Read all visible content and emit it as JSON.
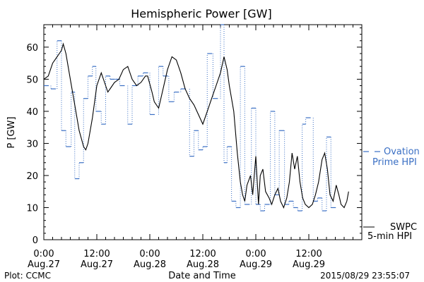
{
  "chart_data": {
    "type": "line",
    "title": "Hemispheric Power [GW]",
    "xlabel": "Date and Time",
    "ylabel": "P [GW]",
    "xlim_hours": [
      0,
      72
    ],
    "ylim": [
      0,
      67
    ],
    "y_ticks": [
      0,
      10,
      20,
      30,
      40,
      50,
      60
    ],
    "x_ticks": [
      {
        "hour": 0,
        "time": "0:00",
        "day": "Aug.27"
      },
      {
        "hour": 12,
        "time": "12:00",
        "day": "Aug.27"
      },
      {
        "hour": 24,
        "time": "0:00",
        "day": "Aug.28"
      },
      {
        "hour": 36,
        "time": "12:00",
        "day": "Aug.28"
      },
      {
        "hour": 48,
        "time": "0:00",
        "day": "Aug.29"
      },
      {
        "hour": 60,
        "time": "12:00",
        "day": "Aug.29"
      }
    ],
    "series": [
      {
        "name": "Ovation Prime HPI",
        "legend_lines": [
          "Ovation",
          "Prime HPI"
        ],
        "color": "#3a6fc4",
        "style": "dotted-step",
        "points": [
          [
            0,
            48
          ],
          [
            1.6,
            47
          ],
          [
            3,
            62
          ],
          [
            4,
            34
          ],
          [
            5,
            29
          ],
          [
            6.2,
            46
          ],
          [
            7,
            19
          ],
          [
            8,
            24
          ],
          [
            9,
            44
          ],
          [
            10,
            51
          ],
          [
            11,
            54
          ],
          [
            11.8,
            40
          ],
          [
            13,
            36
          ],
          [
            14,
            51
          ],
          [
            15,
            50
          ],
          [
            16.2,
            50
          ],
          [
            17.2,
            48
          ],
          [
            19,
            36
          ],
          [
            20,
            48
          ],
          [
            21.3,
            51
          ],
          [
            22.5,
            52
          ],
          [
            24,
            39
          ],
          [
            26,
            54
          ],
          [
            27,
            51
          ],
          [
            28.3,
            43
          ],
          [
            29.5,
            46
          ],
          [
            31,
            47
          ],
          [
            33,
            26
          ],
          [
            34,
            34
          ],
          [
            35,
            28
          ],
          [
            36,
            29
          ],
          [
            37,
            58
          ],
          [
            38.3,
            44
          ],
          [
            40,
            67
          ],
          [
            40.8,
            24
          ],
          [
            41.5,
            29
          ],
          [
            42.5,
            12
          ],
          [
            43.5,
            10
          ],
          [
            44.5,
            54
          ],
          [
            45.5,
            11
          ],
          [
            47,
            41
          ],
          [
            48,
            11
          ],
          [
            49,
            9
          ],
          [
            50,
            11
          ],
          [
            51.3,
            40
          ],
          [
            52.3,
            14
          ],
          [
            53.3,
            34
          ],
          [
            54.5,
            11
          ],
          [
            55.5,
            12
          ],
          [
            56.5,
            10
          ],
          [
            57.5,
            9
          ],
          [
            58.5,
            36
          ],
          [
            59.3,
            38
          ],
          [
            61,
            12
          ],
          [
            62,
            13
          ],
          [
            63,
            9
          ],
          [
            64,
            32
          ],
          [
            65,
            10
          ]
        ]
      },
      {
        "name": "SWPC 5-min HPI",
        "legend_lines": [
          "SWPC",
          "5-min HPI"
        ],
        "color": "#000000",
        "style": "solid",
        "points": [
          [
            0,
            50
          ],
          [
            1,
            51
          ],
          [
            2,
            55
          ],
          [
            3,
            57
          ],
          [
            3.5,
            58
          ],
          [
            4,
            59
          ],
          [
            4.4,
            61
          ],
          [
            5,
            58
          ],
          [
            6,
            50
          ],
          [
            7,
            42
          ],
          [
            8,
            34
          ],
          [
            9,
            29
          ],
          [
            9.5,
            28
          ],
          [
            10,
            30
          ],
          [
            11,
            38
          ],
          [
            12,
            48
          ],
          [
            13,
            52
          ],
          [
            14,
            48
          ],
          [
            14.5,
            46
          ],
          [
            15,
            47
          ],
          [
            16,
            49
          ],
          [
            17,
            50
          ],
          [
            18,
            53
          ],
          [
            19,
            54
          ],
          [
            20,
            50
          ],
          [
            21,
            48
          ],
          [
            22,
            49
          ],
          [
            23,
            51
          ],
          [
            23.5,
            51
          ],
          [
            24.5,
            46
          ],
          [
            25,
            43
          ],
          [
            26,
            41
          ],
          [
            27,
            47
          ],
          [
            28,
            53
          ],
          [
            29,
            57
          ],
          [
            30,
            56
          ],
          [
            31,
            52
          ],
          [
            32,
            47
          ],
          [
            33,
            44
          ],
          [
            34,
            42
          ],
          [
            35,
            39
          ],
          [
            36,
            36
          ],
          [
            37,
            40
          ],
          [
            38,
            44
          ],
          [
            39,
            48
          ],
          [
            40,
            52
          ],
          [
            40.8,
            57
          ],
          [
            41.5,
            53
          ],
          [
            42,
            48
          ],
          [
            43,
            40
          ],
          [
            43.8,
            27
          ],
          [
            44.5,
            18
          ],
          [
            45,
            14
          ],
          [
            45.5,
            12
          ],
          [
            46,
            17
          ],
          [
            46.8,
            20
          ],
          [
            47.3,
            14
          ],
          [
            48,
            26
          ],
          [
            48.6,
            11
          ],
          [
            49,
            20
          ],
          [
            49.6,
            22
          ],
          [
            50.2,
            15
          ],
          [
            51,
            13
          ],
          [
            51.6,
            11
          ],
          [
            52.3,
            14
          ],
          [
            53,
            16
          ],
          [
            53.6,
            12
          ],
          [
            54.3,
            10
          ],
          [
            55,
            13
          ],
          [
            55.6,
            18
          ],
          [
            56.2,
            27
          ],
          [
            56.8,
            22
          ],
          [
            57.4,
            26
          ],
          [
            58,
            18
          ],
          [
            58.6,
            13
          ],
          [
            59.2,
            11
          ],
          [
            60,
            10
          ],
          [
            60.8,
            11
          ],
          [
            61.5,
            14
          ],
          [
            62.2,
            18
          ],
          [
            63,
            25
          ],
          [
            63.6,
            27
          ],
          [
            64.2,
            22
          ],
          [
            64.8,
            14
          ],
          [
            65.5,
            12
          ],
          [
            66.2,
            17
          ],
          [
            66.8,
            14
          ],
          [
            67.3,
            11
          ],
          [
            68,
            10
          ],
          [
            68.6,
            12
          ],
          [
            69,
            15
          ]
        ]
      }
    ],
    "legend_placement": "right, beside plot",
    "grid": false
  },
  "footer": {
    "source": "Plot: CCMC",
    "timestamp": "2015/08/29 23:55:07"
  }
}
